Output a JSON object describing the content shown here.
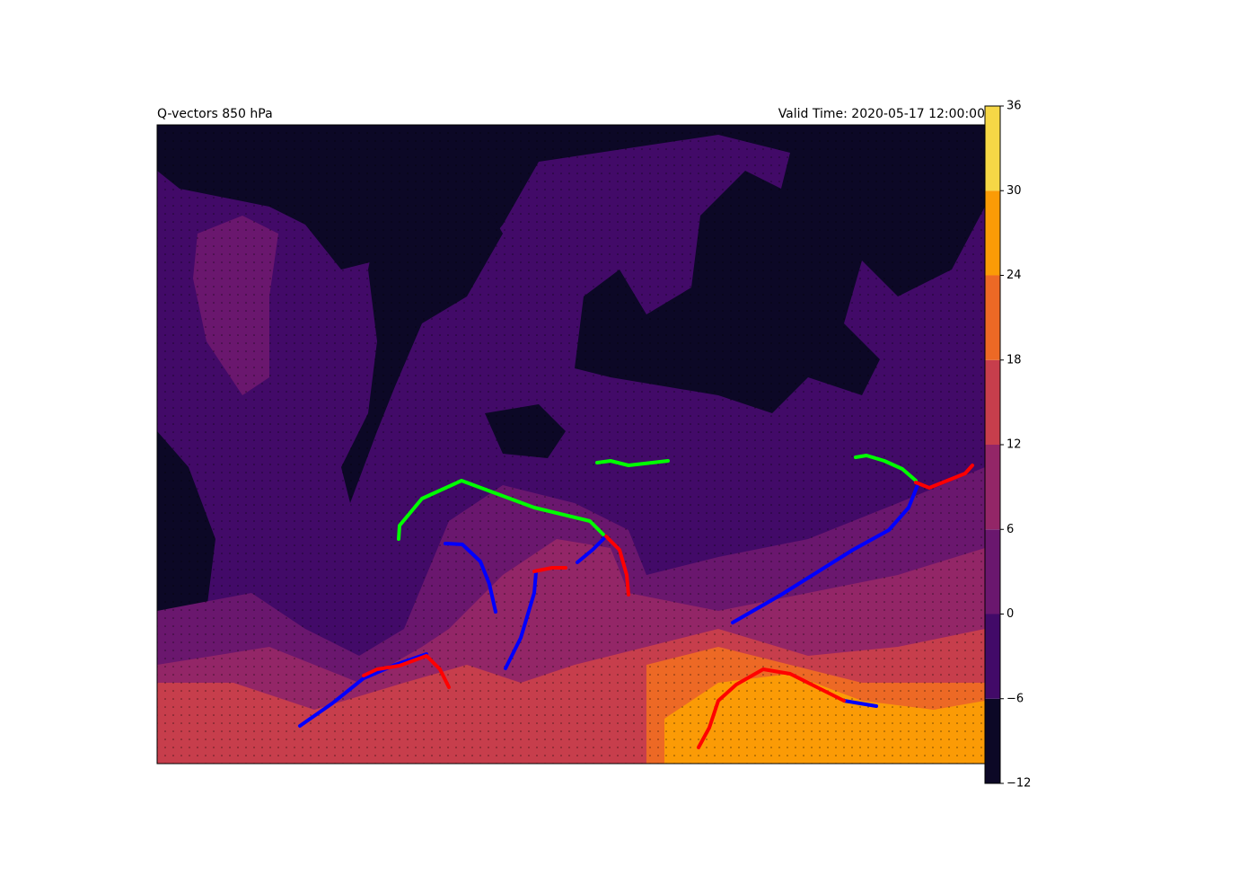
{
  "header": {
    "title": "Q-vectors 850 hPa",
    "valid_time": "Valid Time: 2020-05-17 12:00:00"
  },
  "colorbar": {
    "ticks": [
      {
        "value": -12,
        "label": "−12"
      },
      {
        "value": -6,
        "label": "−6"
      },
      0,
      6,
      12,
      18,
      24,
      30,
      36
    ],
    "colors": [
      "#0c0826",
      "#420a68",
      "#6a176e",
      "#932667",
      "#c73e4c",
      "#ed6925",
      "#fb9b06",
      "#f6d746"
    ]
  }
}
